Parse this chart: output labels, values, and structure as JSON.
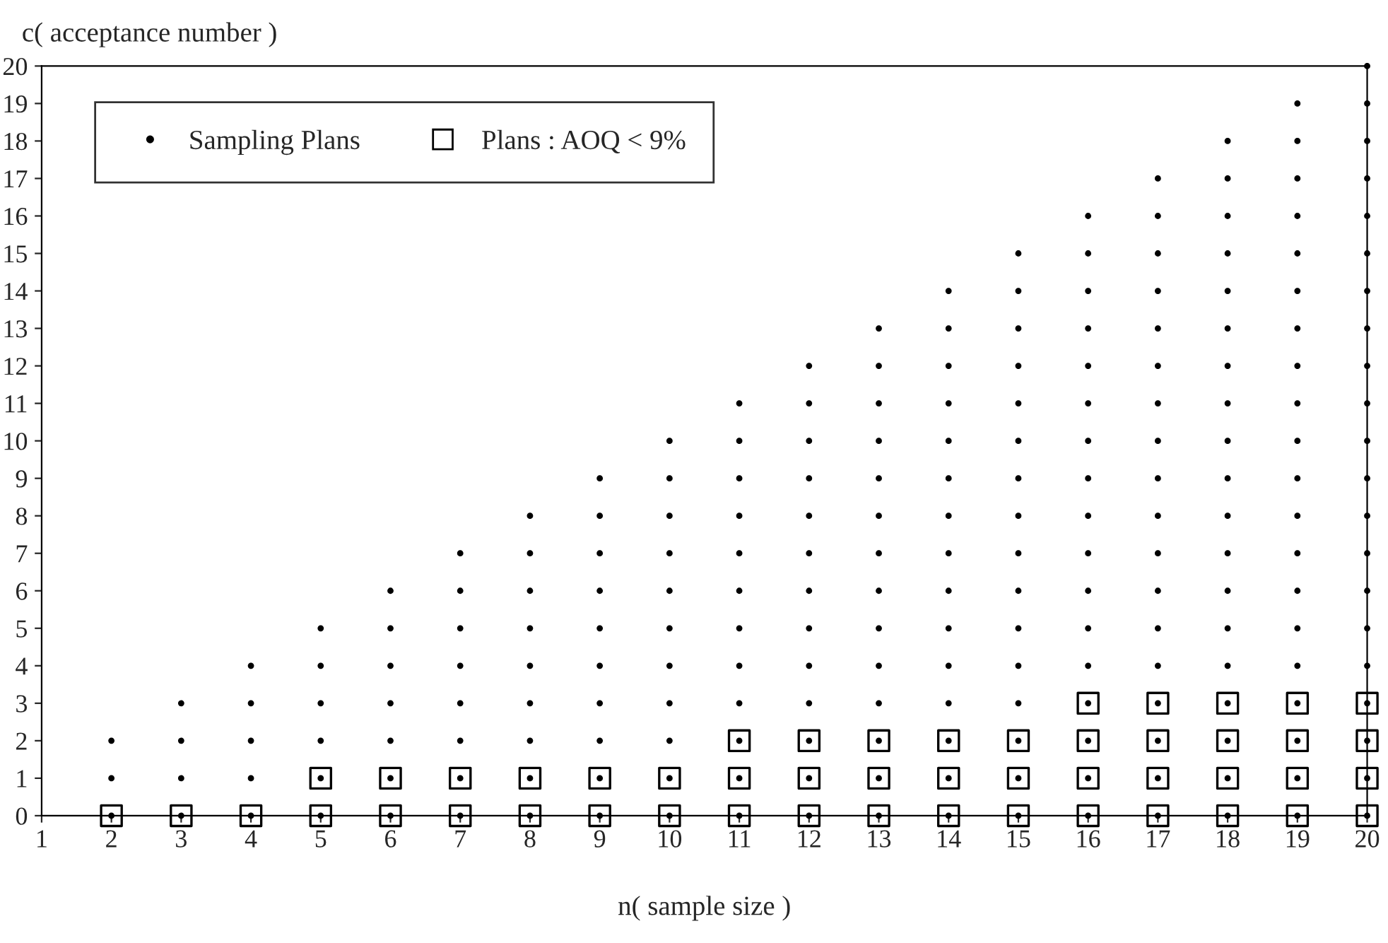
{
  "chart_data": {
    "type": "scatter",
    "xlabel": "n( sample size )",
    "ylabel": "c( acceptance number )",
    "xlim": [
      1,
      20
    ],
    "xticks": [
      1,
      2,
      3,
      4,
      5,
      6,
      7,
      8,
      9,
      10,
      11,
      12,
      13,
      14,
      15,
      16,
      17,
      18,
      19,
      20
    ],
    "ylim": [
      0,
      20
    ],
    "yticks": [
      0,
      1,
      2,
      3,
      4,
      5,
      6,
      7,
      8,
      9,
      10,
      11,
      12,
      13,
      14,
      15,
      16,
      17,
      18,
      19,
      20
    ],
    "grid": false,
    "legend": "top left",
    "series": [
      {
        "name": "Sampling Plans",
        "color": "#000000",
        "marker": "circle",
        "x": [
          2,
          2,
          2,
          3,
          3,
          3,
          3,
          4,
          4,
          4,
          4,
          4,
          5,
          5,
          5,
          5,
          5,
          5,
          6,
          6,
          6,
          6,
          6,
          6,
          6,
          7,
          7,
          7,
          7,
          7,
          7,
          7,
          7,
          8,
          8,
          8,
          8,
          8,
          8,
          8,
          8,
          8,
          9,
          9,
          9,
          9,
          9,
          9,
          9,
          9,
          9,
          9,
          10,
          10,
          10,
          10,
          10,
          10,
          10,
          10,
          10,
          10,
          10,
          11,
          11,
          11,
          11,
          11,
          11,
          11,
          11,
          11,
          11,
          11,
          11,
          12,
          12,
          12,
          12,
          12,
          12,
          12,
          12,
          12,
          12,
          12,
          12,
          12,
          13,
          13,
          13,
          13,
          13,
          13,
          13,
          13,
          13,
          13,
          13,
          13,
          13,
          13,
          14,
          14,
          14,
          14,
          14,
          14,
          14,
          14,
          14,
          14,
          14,
          14,
          14,
          14,
          14,
          15,
          15,
          15,
          15,
          15,
          15,
          15,
          15,
          15,
          15,
          15,
          15,
          15,
          15,
          15,
          15,
          16,
          16,
          16,
          16,
          16,
          16,
          16,
          16,
          16,
          16,
          16,
          16,
          16,
          16,
          16,
          16,
          16,
          17,
          17,
          17,
          17,
          17,
          17,
          17,
          17,
          17,
          17,
          17,
          17,
          17,
          17,
          17,
          17,
          17,
          17,
          18,
          18,
          18,
          18,
          18,
          18,
          18,
          18,
          18,
          18,
          18,
          18,
          18,
          18,
          18,
          18,
          18,
          18,
          18,
          19,
          19,
          19,
          19,
          19,
          19,
          19,
          19,
          19,
          19,
          19,
          19,
          19,
          19,
          19,
          19,
          19,
          19,
          19,
          19,
          20,
          20,
          20,
          20,
          20,
          20,
          20,
          20,
          20,
          20,
          20,
          20,
          20,
          20,
          20,
          20,
          20,
          20,
          20,
          20,
          20
        ],
        "values": [
          0,
          1,
          2,
          0,
          1,
          2,
          3,
          0,
          1,
          2,
          3,
          4,
          0,
          1,
          2,
          3,
          4,
          5,
          0,
          1,
          2,
          3,
          4,
          5,
          6,
          0,
          1,
          2,
          3,
          4,
          5,
          6,
          7,
          0,
          1,
          2,
          3,
          4,
          5,
          6,
          7,
          8,
          0,
          1,
          2,
          3,
          4,
          5,
          6,
          7,
          8,
          9,
          0,
          1,
          2,
          3,
          4,
          5,
          6,
          7,
          8,
          9,
          10,
          0,
          1,
          2,
          3,
          4,
          5,
          6,
          7,
          8,
          9,
          10,
          11,
          0,
          1,
          2,
          3,
          4,
          5,
          6,
          7,
          8,
          9,
          10,
          11,
          12,
          0,
          1,
          2,
          3,
          4,
          5,
          6,
          7,
          8,
          9,
          10,
          11,
          12,
          13,
          0,
          1,
          2,
          3,
          4,
          5,
          6,
          7,
          8,
          9,
          10,
          11,
          12,
          13,
          14,
          0,
          1,
          2,
          3,
          4,
          5,
          6,
          7,
          8,
          9,
          10,
          11,
          12,
          13,
          14,
          15,
          0,
          1,
          2,
          3,
          4,
          5,
          6,
          7,
          8,
          9,
          10,
          11,
          12,
          13,
          14,
          15,
          16,
          0,
          1,
          2,
          3,
          4,
          5,
          6,
          7,
          8,
          9,
          10,
          11,
          12,
          13,
          14,
          15,
          16,
          17,
          0,
          1,
          2,
          3,
          4,
          5,
          6,
          7,
          8,
          9,
          10,
          11,
          12,
          13,
          14,
          15,
          16,
          17,
          18,
          0,
          1,
          2,
          3,
          4,
          5,
          6,
          7,
          8,
          9,
          10,
          11,
          12,
          13,
          14,
          15,
          16,
          17,
          18,
          19,
          0,
          1,
          2,
          3,
          4,
          5,
          6,
          7,
          8,
          9,
          10,
          11,
          12,
          13,
          14,
          15,
          16,
          17,
          18,
          19,
          20
        ]
      },
      {
        "name": "Plans : AOQ < 9%",
        "color": "#000000",
        "marker": "square",
        "x": [
          2,
          3,
          4,
          5,
          5,
          6,
          6,
          7,
          7,
          8,
          8,
          9,
          9,
          10,
          10,
          11,
          11,
          11,
          12,
          12,
          12,
          13,
          13,
          13,
          14,
          14,
          14,
          15,
          15,
          15,
          16,
          16,
          16,
          16,
          17,
          17,
          17,
          17,
          18,
          18,
          18,
          18,
          19,
          19,
          19,
          19,
          20,
          20,
          20,
          20
        ],
        "values": [
          0,
          0,
          0,
          0,
          1,
          0,
          1,
          0,
          1,
          0,
          1,
          0,
          1,
          0,
          1,
          0,
          1,
          2,
          0,
          1,
          2,
          0,
          1,
          2,
          0,
          1,
          2,
          0,
          1,
          2,
          0,
          1,
          2,
          3,
          0,
          1,
          2,
          3,
          0,
          1,
          2,
          3,
          0,
          1,
          2,
          3,
          0,
          1,
          2,
          3
        ]
      }
    ]
  }
}
